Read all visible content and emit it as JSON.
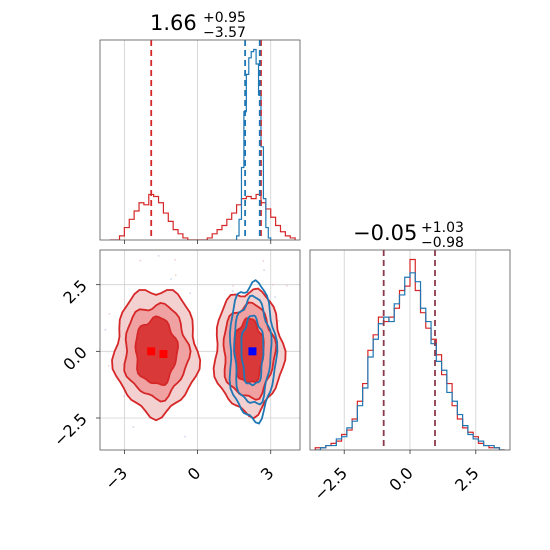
{
  "chart_data": {
    "type": "corner",
    "panels": [
      {
        "id": "hist-param1",
        "type": "step-histogram",
        "title": {
          "value": "1.66",
          "plus": "+0.95",
          "minus": "−3.57"
        },
        "xlim": [
          -4,
          4.2
        ],
        "grid": "vertical",
        "series": [
          {
            "color": "#d62728",
            "bin_edges": [
              -3.6,
              -3.4,
              -3.2,
              -3.0,
              -2.8,
              -2.6,
              -2.4,
              -2.2,
              -2.0,
              -1.8,
              -1.6,
              -1.4,
              -1.2,
              -1.0,
              -0.8,
              -0.6,
              -0.4,
              -0.2,
              0.0,
              0.2,
              0.4,
              0.6,
              0.8,
              1.0,
              1.2,
              1.4,
              1.6,
              1.8,
              2.0,
              2.2,
              2.4,
              2.6,
              2.8,
              3.0,
              3.2,
              3.4,
              3.6,
              3.8,
              4.0
            ],
            "counts": [
              0,
              0,
              0.02,
              0.06,
              0.1,
              0.14,
              0.18,
              0.17,
              0.22,
              0.21,
              0.18,
              0.13,
              0.09,
              0.05,
              0.03,
              0.01,
              0,
              0,
              0,
              0,
              0.01,
              0.03,
              0.05,
              0.07,
              0.1,
              0.13,
              0.17,
              0.2,
              0.21,
              0.2,
              0.22,
              0.18,
              0.15,
              0.11,
              0.07,
              0.04,
              0.02,
              0.01
            ]
          },
          {
            "color": "#1f77b4",
            "bin_edges": [
              1.6,
              1.7,
              1.8,
              1.9,
              2.0,
              2.1,
              2.2,
              2.3,
              2.4,
              2.5,
              2.6,
              2.7,
              2.8,
              2.9,
              3.0
            ],
            "counts": [
              0.02,
              0.1,
              0.35,
              0.62,
              0.8,
              0.88,
              0.91,
              0.92,
              0.85,
              0.7,
              0.45,
              0.2,
              0.06,
              0.01
            ]
          }
        ],
        "quantile_lines": [
          {
            "color": "#d62728",
            "x": [
              -1.9,
              2.6
            ]
          },
          {
            "color": "#1f77b4",
            "x": [
              1.95,
              2.55
            ]
          }
        ]
      },
      {
        "id": "hist-param2",
        "type": "step-histogram",
        "title": {
          "value": "−0.05",
          "plus": "+1.03",
          "minus": "−0.98"
        },
        "xlim": [
          -3.8,
          3.8
        ],
        "grid": "vertical",
        "x_ticks": [
          -2.5,
          0.0,
          2.5
        ],
        "x_tick_labels": [
          "−2.5",
          "0.0",
          "2.5"
        ],
        "series": [
          {
            "color": "#d62728",
            "bin_edges": [
              -3.6,
              -3.4,
              -3.2,
              -3.0,
              -2.8,
              -2.6,
              -2.4,
              -2.2,
              -2.0,
              -1.8,
              -1.6,
              -1.4,
              -1.2,
              -1.0,
              -0.8,
              -0.6,
              -0.4,
              -0.2,
              0.0,
              0.2,
              0.4,
              0.6,
              0.8,
              1.0,
              1.2,
              1.4,
              1.6,
              1.8,
              2.0,
              2.2,
              2.4,
              2.6,
              2.8,
              3.0,
              3.2,
              3.4,
              3.6
            ],
            "counts": [
              0.01,
              0.01,
              0.02,
              0.03,
              0.04,
              0.07,
              0.09,
              0.14,
              0.22,
              0.3,
              0.45,
              0.52,
              0.6,
              0.58,
              0.6,
              0.64,
              0.72,
              0.74,
              0.86,
              0.72,
              0.62,
              0.55,
              0.5,
              0.43,
              0.34,
              0.3,
              0.2,
              0.14,
              0.1,
              0.08,
              0.06,
              0.03,
              0.02,
              0.01,
              0.01,
              0.0
            ]
          },
          {
            "color": "#1f77b4",
            "bin_edges": [
              -3.6,
              -3.4,
              -3.2,
              -3.0,
              -2.8,
              -2.6,
              -2.4,
              -2.2,
              -2.0,
              -1.8,
              -1.6,
              -1.4,
              -1.2,
              -1.0,
              -0.8,
              -0.6,
              -0.4,
              -0.2,
              0.0,
              0.2,
              0.4,
              0.6,
              0.8,
              1.0,
              1.2,
              1.4,
              1.6,
              1.8,
              2.0,
              2.2,
              2.4,
              2.6,
              2.8,
              3.0,
              3.2,
              3.4,
              3.6
            ],
            "counts": [
              0.0,
              0.01,
              0.02,
              0.02,
              0.05,
              0.06,
              0.1,
              0.13,
              0.2,
              0.28,
              0.42,
              0.5,
              0.57,
              0.6,
              0.58,
              0.66,
              0.7,
              0.78,
              0.8,
              0.76,
              0.64,
              0.58,
              0.48,
              0.4,
              0.36,
              0.26,
              0.22,
              0.16,
              0.11,
              0.07,
              0.05,
              0.04,
              0.02,
              0.02,
              0.01,
              0.0
            ]
          }
        ],
        "quantile_lines": [
          {
            "color": "#8a3a4a",
            "x": [
              -1.0,
              0.95
            ]
          }
        ]
      },
      {
        "id": "joint",
        "type": "2d-contour",
        "xlim": [
          -4,
          4.2
        ],
        "ylim": [
          -3.7,
          3.8
        ],
        "grid": "both",
        "x_ticks": [
          -3,
          0,
          3
        ],
        "x_tick_labels": [
          "−3",
          "0",
          "3"
        ],
        "y_ticks": [
          -2.5,
          0.0,
          2.5
        ],
        "y_tick_labels": [
          "−2.5",
          "0.0",
          "2.5"
        ],
        "contour_sets": [
          {
            "color": "#d62728",
            "fill": [
              "#f2c9c9",
              "#ee9a9a",
              "#d62728"
            ],
            "modes": [
              {
                "cx": -1.7,
                "cy": 0.0,
                "levels": [
                  [
                    1.7,
                    2.35
                  ],
                  [
                    1.3,
                    1.75
                  ],
                  [
                    0.85,
                    1.25
                  ]
                ]
              },
              {
                "cx": 2.1,
                "cy": 0.0,
                "levels": [
                  [
                    1.4,
                    2.3
                  ],
                  [
                    1.05,
                    1.75
                  ],
                  [
                    0.6,
                    1.2
                  ]
                ]
              }
            ],
            "peak_markers": [
              {
                "x": -1.9,
                "y": 0.0
              },
              {
                "x": -1.4,
                "y": -0.1
              }
            ]
          },
          {
            "color": "#1f77b4",
            "modes": [
              {
                "cx": 2.25,
                "cy": 0.0,
                "levels": [
                  [
                    0.95,
                    2.55
                  ],
                  [
                    0.75,
                    2.0
                  ],
                  [
                    0.45,
                    1.3
                  ]
                ]
              }
            ],
            "peak_markers": [
              {
                "x": 2.25,
                "y": 0.0
              }
            ]
          }
        ]
      }
    ]
  }
}
